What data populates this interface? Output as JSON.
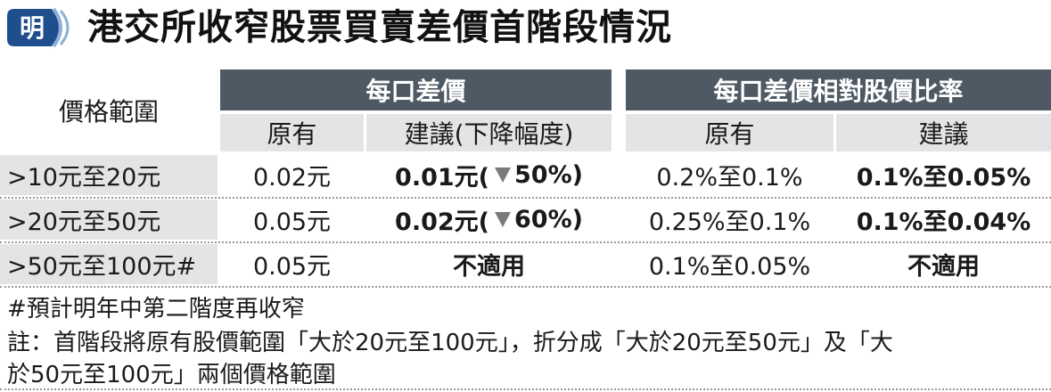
{
  "title": "港交所收窄股票買賣差價首階段情況",
  "logo": {
    "glyph": "明",
    "color": "#1f4e8c"
  },
  "table": {
    "corner_label": "價格範圍",
    "group_headers": [
      "每口差價",
      "每口差價相對股價比率"
    ],
    "sub_headers": [
      "原有",
      "建議(下降幅度)",
      "原有",
      "建議"
    ],
    "rows": [
      {
        "range": ">10元至20元",
        "spread_orig": "0.02元",
        "spread_new": "0.01元(",
        "spread_pct": "50%)",
        "ratio_orig": "0.2%至0.1%",
        "ratio_new": "0.1%至0.05%"
      },
      {
        "range": ">20元至50元",
        "spread_orig": "0.05元",
        "spread_new": "0.02元(",
        "spread_pct": "60%)",
        "ratio_orig": "0.25%至0.1%",
        "ratio_new": "0.1%至0.04%"
      },
      {
        "range": ">50元至100元#",
        "spread_orig": "0.05元",
        "spread_na": "不適用",
        "ratio_orig": "0.1%至0.05%",
        "ratio_na": "不適用"
      }
    ]
  },
  "notes": [
    "#預計明年中第二階度再收窄",
    "註：首階段將原有股價範圍「大於20元至100元」，折分成「大於20元至50元」及「大",
    "於50元至100元」兩個價格範圍"
  ],
  "colors": {
    "header_dark": "#4e5964",
    "header_light": "#e2e4e6",
    "decline_arrow": "#7a7a7a"
  }
}
